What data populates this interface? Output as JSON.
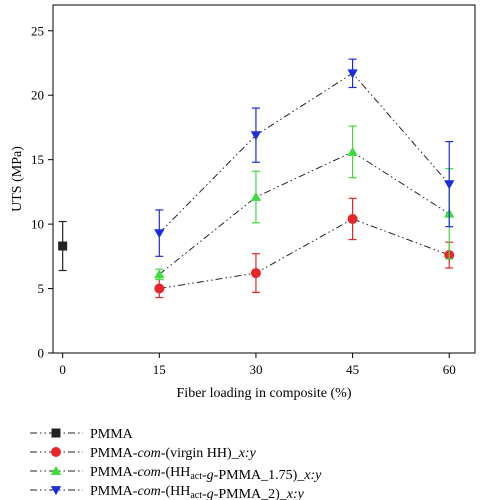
{
  "chart_data": {
    "type": "line",
    "title": "",
    "xlabel": "Fiber loading in composite (%)",
    "ylabel": "UTS (MPa)",
    "xlim": [
      -1.5,
      64
    ],
    "ylim": [
      0,
      27
    ],
    "xticks": [
      0,
      15,
      30,
      45,
      60
    ],
    "yticks": [
      0,
      5,
      10,
      15,
      20,
      25
    ],
    "grid": false,
    "legend_position": "bottom",
    "series": [
      {
        "name": "PMMA",
        "marker": "square",
        "color": "#222222",
        "x": [
          0
        ],
        "y": [
          8.3
        ],
        "err": [
          1.9
        ]
      },
      {
        "name": "PMMA-com-(virgin HH)_x:y",
        "marker": "circle",
        "color": "#e8252b",
        "x": [
          15,
          30,
          45,
          60
        ],
        "y": [
          5.0,
          6.2,
          10.4,
          7.6
        ],
        "err": [
          0.7,
          1.5,
          1.6,
          1.0
        ]
      },
      {
        "name": "PMMA-com-(HHact-g-PMMA_1.75)_x:y",
        "marker": "triangle-up",
        "color": "#3ddc3d",
        "x": [
          15,
          30,
          45,
          60
        ],
        "y": [
          6.1,
          12.1,
          15.6,
          10.8
        ],
        "err": [
          0.4,
          2.0,
          2.0,
          3.5
        ]
      },
      {
        "name": "PMMA-com-(HHact-g-PMMA_2)_x:y",
        "marker": "triangle-down",
        "color": "#1a2ee0",
        "x": [
          15,
          30,
          45,
          60
        ],
        "y": [
          9.3,
          16.9,
          21.7,
          13.1
        ],
        "err": [
          1.8,
          2.1,
          1.1,
          3.3
        ]
      }
    ],
    "legend": [
      {
        "parts": [
          {
            "t": "PMMA"
          }
        ]
      },
      {
        "parts": [
          {
            "t": "PMMA-"
          },
          {
            "t": "com",
            "style": "italic"
          },
          {
            "t": "-(virgin HH)_"
          },
          {
            "t": "x:y",
            "style": "italic"
          }
        ]
      },
      {
        "parts": [
          {
            "t": "PMMA-"
          },
          {
            "t": "com",
            "style": "italic"
          },
          {
            "t": "-(HH"
          },
          {
            "t": "act",
            "style": "sub"
          },
          {
            "t": "-"
          },
          {
            "t": "g",
            "style": "italic"
          },
          {
            "t": "-PMMA_1.75)_"
          },
          {
            "t": "x:y",
            "style": "italic"
          }
        ]
      },
      {
        "parts": [
          {
            "t": "PMMA-"
          },
          {
            "t": "com",
            "style": "italic"
          },
          {
            "t": "-(HH"
          },
          {
            "t": "act",
            "style": "sub"
          },
          {
            "t": "-"
          },
          {
            "t": "g",
            "style": "italic"
          },
          {
            "t": "-PMMA_2)_"
          },
          {
            "t": "x:y",
            "style": "italic"
          }
        ]
      }
    ]
  }
}
